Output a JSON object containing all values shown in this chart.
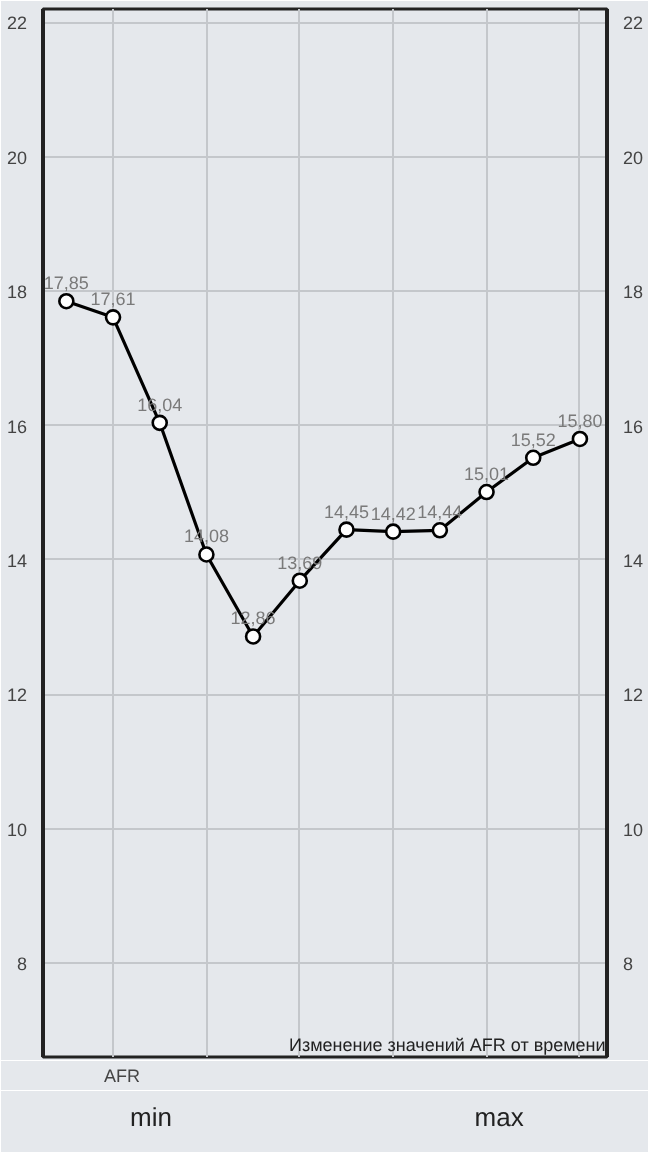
{
  "chart_data": {
    "type": "line",
    "categories": [
      null,
      null,
      null,
      null,
      null,
      null,
      null,
      null,
      null,
      null,
      null,
      null
    ],
    "series": [
      {
        "name": "AFR",
        "color": "#000000",
        "values": [
          17.85,
          17.61,
          16.04,
          14.08,
          12.86,
          13.69,
          14.45,
          14.42,
          14.44,
          15.01,
          15.52,
          15.8
        ],
        "value_labels": [
          "17,85",
          "17,61",
          "16,04",
          "14,08",
          "12,86",
          "13,69",
          "14,45",
          "14,42",
          "14,44",
          "15,01",
          "15,52",
          "15,80"
        ]
      }
    ],
    "ylim": [
      6.6,
      22.2
    ],
    "yticks": [
      8,
      10,
      12,
      14,
      16,
      18,
      20,
      22
    ],
    "y2lim": [
      6.6,
      22.2
    ],
    "y2ticks": [
      8,
      10,
      12,
      14,
      16,
      18,
      20,
      22
    ],
    "grid": true,
    "legend": "bottom left",
    "marker": "circle",
    "line_style": "solid",
    "annotations": [
      "Изменение значений AFR от времени",
      "min",
      "max"
    ]
  }
}
